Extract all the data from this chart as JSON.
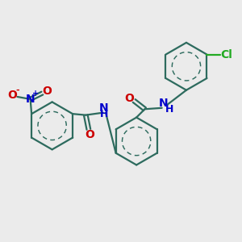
{
  "background_color": "#ebebeb",
  "bond_color": "#2d6b5e",
  "bond_width": 1.6,
  "font_size": 10,
  "N_color": "#0000cc",
  "O_color": "#cc0000",
  "Cl_color": "#22aa22",
  "figsize": [
    3.0,
    3.0
  ],
  "dpi": 100,
  "xlim": [
    0,
    10
  ],
  "ylim": [
    0,
    10
  ]
}
